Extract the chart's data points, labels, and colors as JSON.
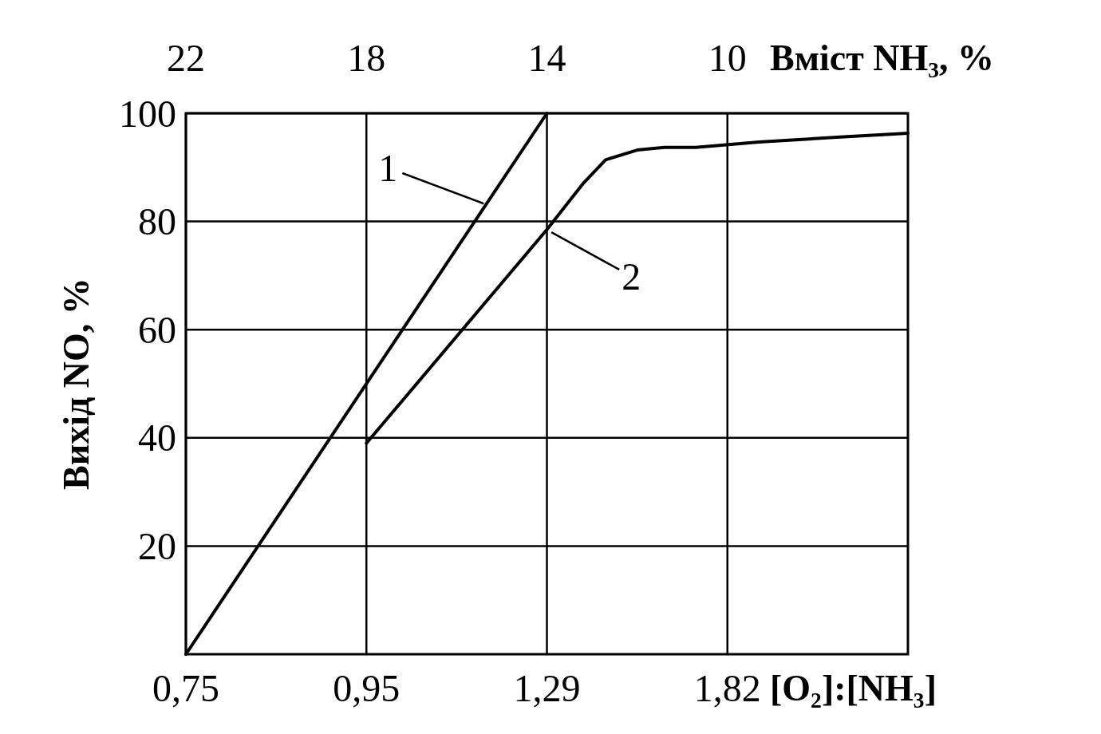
{
  "chart_data": {
    "type": "line",
    "ylabel": "Вихід NO, %",
    "xlabel": "Вміст NH₃, %",
    "xlim": [
      22,
      6
    ],
    "xticks": [
      22,
      18,
      14,
      10
    ],
    "ylim": [
      0,
      100
    ],
    "yticks": [
      20,
      40,
      60,
      80,
      100
    ],
    "grid": true,
    "line_style": "solid",
    "series": [
      {
        "color": "#000000",
        "x": [
          22,
          14
        ],
        "values": [
          0,
          100
        ]
      },
      {
        "color": "#000000",
        "x": [
          18,
          14,
          13.2,
          12.7,
          12,
          11.4,
          10.7,
          9.3,
          7.5,
          6
        ],
        "values": [
          39,
          78.5,
          87,
          91.4,
          93.2,
          93.7,
          93.7,
          94.7,
          95.6,
          96.3
        ]
      }
    ],
    "annotations": [
      {
        "text": "1",
        "x": 15.4,
        "y": 83.3
      },
      {
        "text": "2",
        "x": 13.9,
        "y": 78
      },
      "0,75",
      "0,95",
      "1,29",
      "1,82",
      "[O₂]:[NH₃]"
    ]
  }
}
